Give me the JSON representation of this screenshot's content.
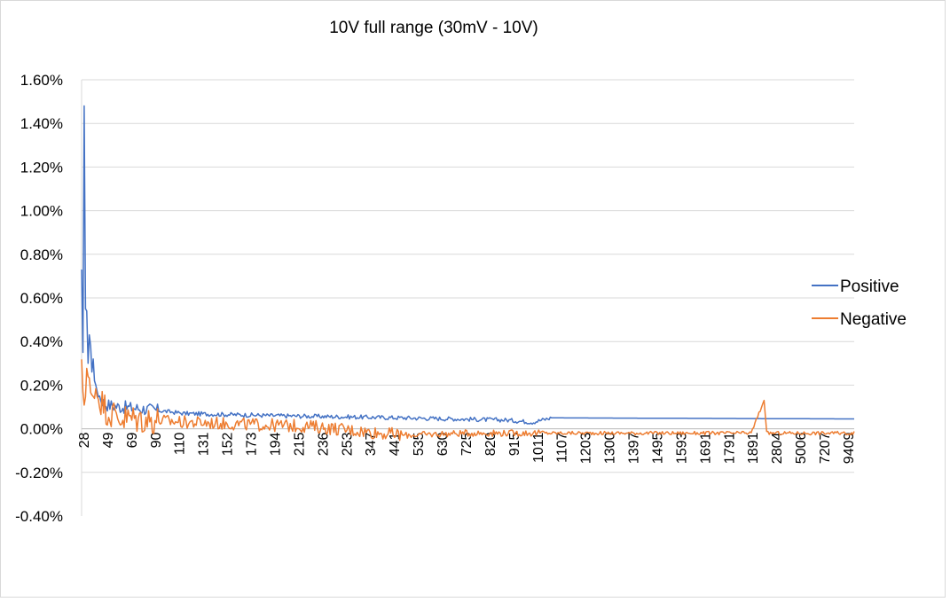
{
  "chart_data": {
    "type": "line",
    "title": "10V full range (30mV - 10V)",
    "xlabel": "",
    "ylabel": "",
    "ylim": [
      -0.004,
      0.016
    ],
    "y_tick_values": [
      -0.004,
      -0.002,
      0,
      0.002,
      0.004,
      0.006,
      0.008,
      0.01,
      0.012,
      0.014,
      0.016
    ],
    "y_tick_labels": [
      "-0.40%",
      "-0.20%",
      "0.00%",
      "0.20%",
      "0.40%",
      "0.60%",
      "0.80%",
      "1.00%",
      "1.20%",
      "1.40%",
      "1.60%"
    ],
    "x_tick_labels": [
      "28",
      "49",
      "69",
      "90",
      "110",
      "131",
      "152",
      "173",
      "194",
      "215",
      "236",
      "253",
      "347",
      "441",
      "535",
      "630",
      "725",
      "820",
      "915",
      "1011",
      "1107",
      "1203",
      "1300",
      "1397",
      "1495",
      "1593",
      "1691",
      "1791",
      "1891",
      "2804",
      "5006",
      "7207",
      "9409"
    ],
    "grid": true,
    "legend_position": "right",
    "series": [
      {
        "name": "Positive",
        "color": "#4472C4",
        "key_points": [
          [
            0,
            0.0073
          ],
          [
            1,
            0.0035
          ],
          [
            2,
            0.0148
          ],
          [
            3,
            0.0055
          ],
          [
            4,
            0.0054
          ],
          [
            5,
            0.003
          ],
          [
            6,
            0.0043
          ],
          [
            7,
            0.0038
          ],
          [
            8,
            0.0026
          ],
          [
            9,
            0.0032
          ],
          [
            10,
            0.0022
          ],
          [
            12,
            0.0018
          ],
          [
            14,
            0.0015
          ],
          [
            17,
            0.0012
          ],
          [
            20,
            0.0011
          ],
          [
            30,
            0.001
          ],
          [
            50,
            0.0009
          ],
          [
            80,
            0.0007
          ],
          [
            150,
            0.0006
          ],
          [
            250,
            0.0005
          ],
          [
            330,
            0.0004
          ],
          [
            350,
            0.0003
          ],
          [
            365,
            0.0005
          ],
          [
            600,
            0.00045
          ]
        ]
      },
      {
        "name": "Negative",
        "color": "#ED7D31",
        "key_points": [
          [
            0,
            0.0026
          ],
          [
            2,
            0.0012
          ],
          [
            4,
            0.0028
          ],
          [
            6,
            0.0019
          ],
          [
            8,
            0.0012
          ],
          [
            10,
            0.002
          ],
          [
            14,
            0.0014
          ],
          [
            20,
            0.0008
          ],
          [
            30,
            0.0005
          ],
          [
            80,
            0.0003
          ],
          [
            180,
            0.0001
          ],
          [
            250,
            -0.0003
          ],
          [
            300,
            -0.0002
          ],
          [
            520,
            -0.0002
          ],
          [
            530,
            0.0013
          ],
          [
            532,
            -0.0002
          ],
          [
            600,
            -0.0002
          ]
        ]
      }
    ]
  }
}
